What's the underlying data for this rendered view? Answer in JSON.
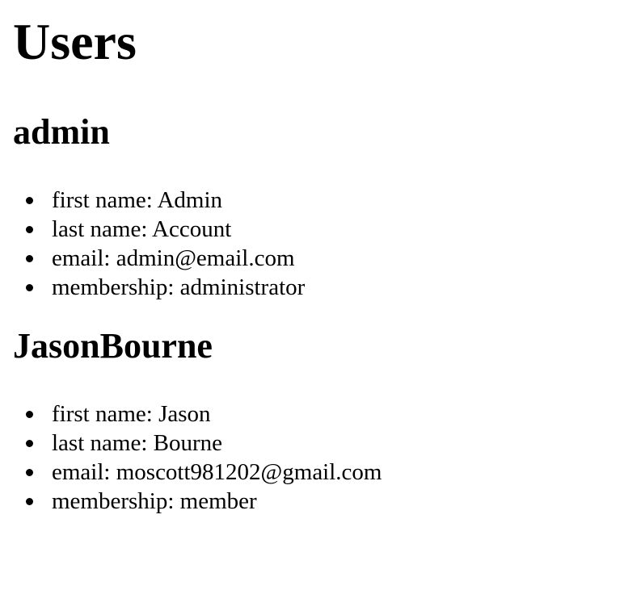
{
  "page": {
    "title": "Users"
  },
  "users": [
    {
      "username": "admin",
      "details": [
        {
          "text": "first name: Admin"
        },
        {
          "text": "last name: Account"
        },
        {
          "text": "email: admin@email.com"
        },
        {
          "text": "membership: administrator"
        }
      ]
    },
    {
      "username": "JasonBourne",
      "details": [
        {
          "text": "first name: Jason"
        },
        {
          "text": "last name: Bourne"
        },
        {
          "text": "email: moscott981202@gmail.com"
        },
        {
          "text": "membership: member"
        }
      ]
    }
  ]
}
